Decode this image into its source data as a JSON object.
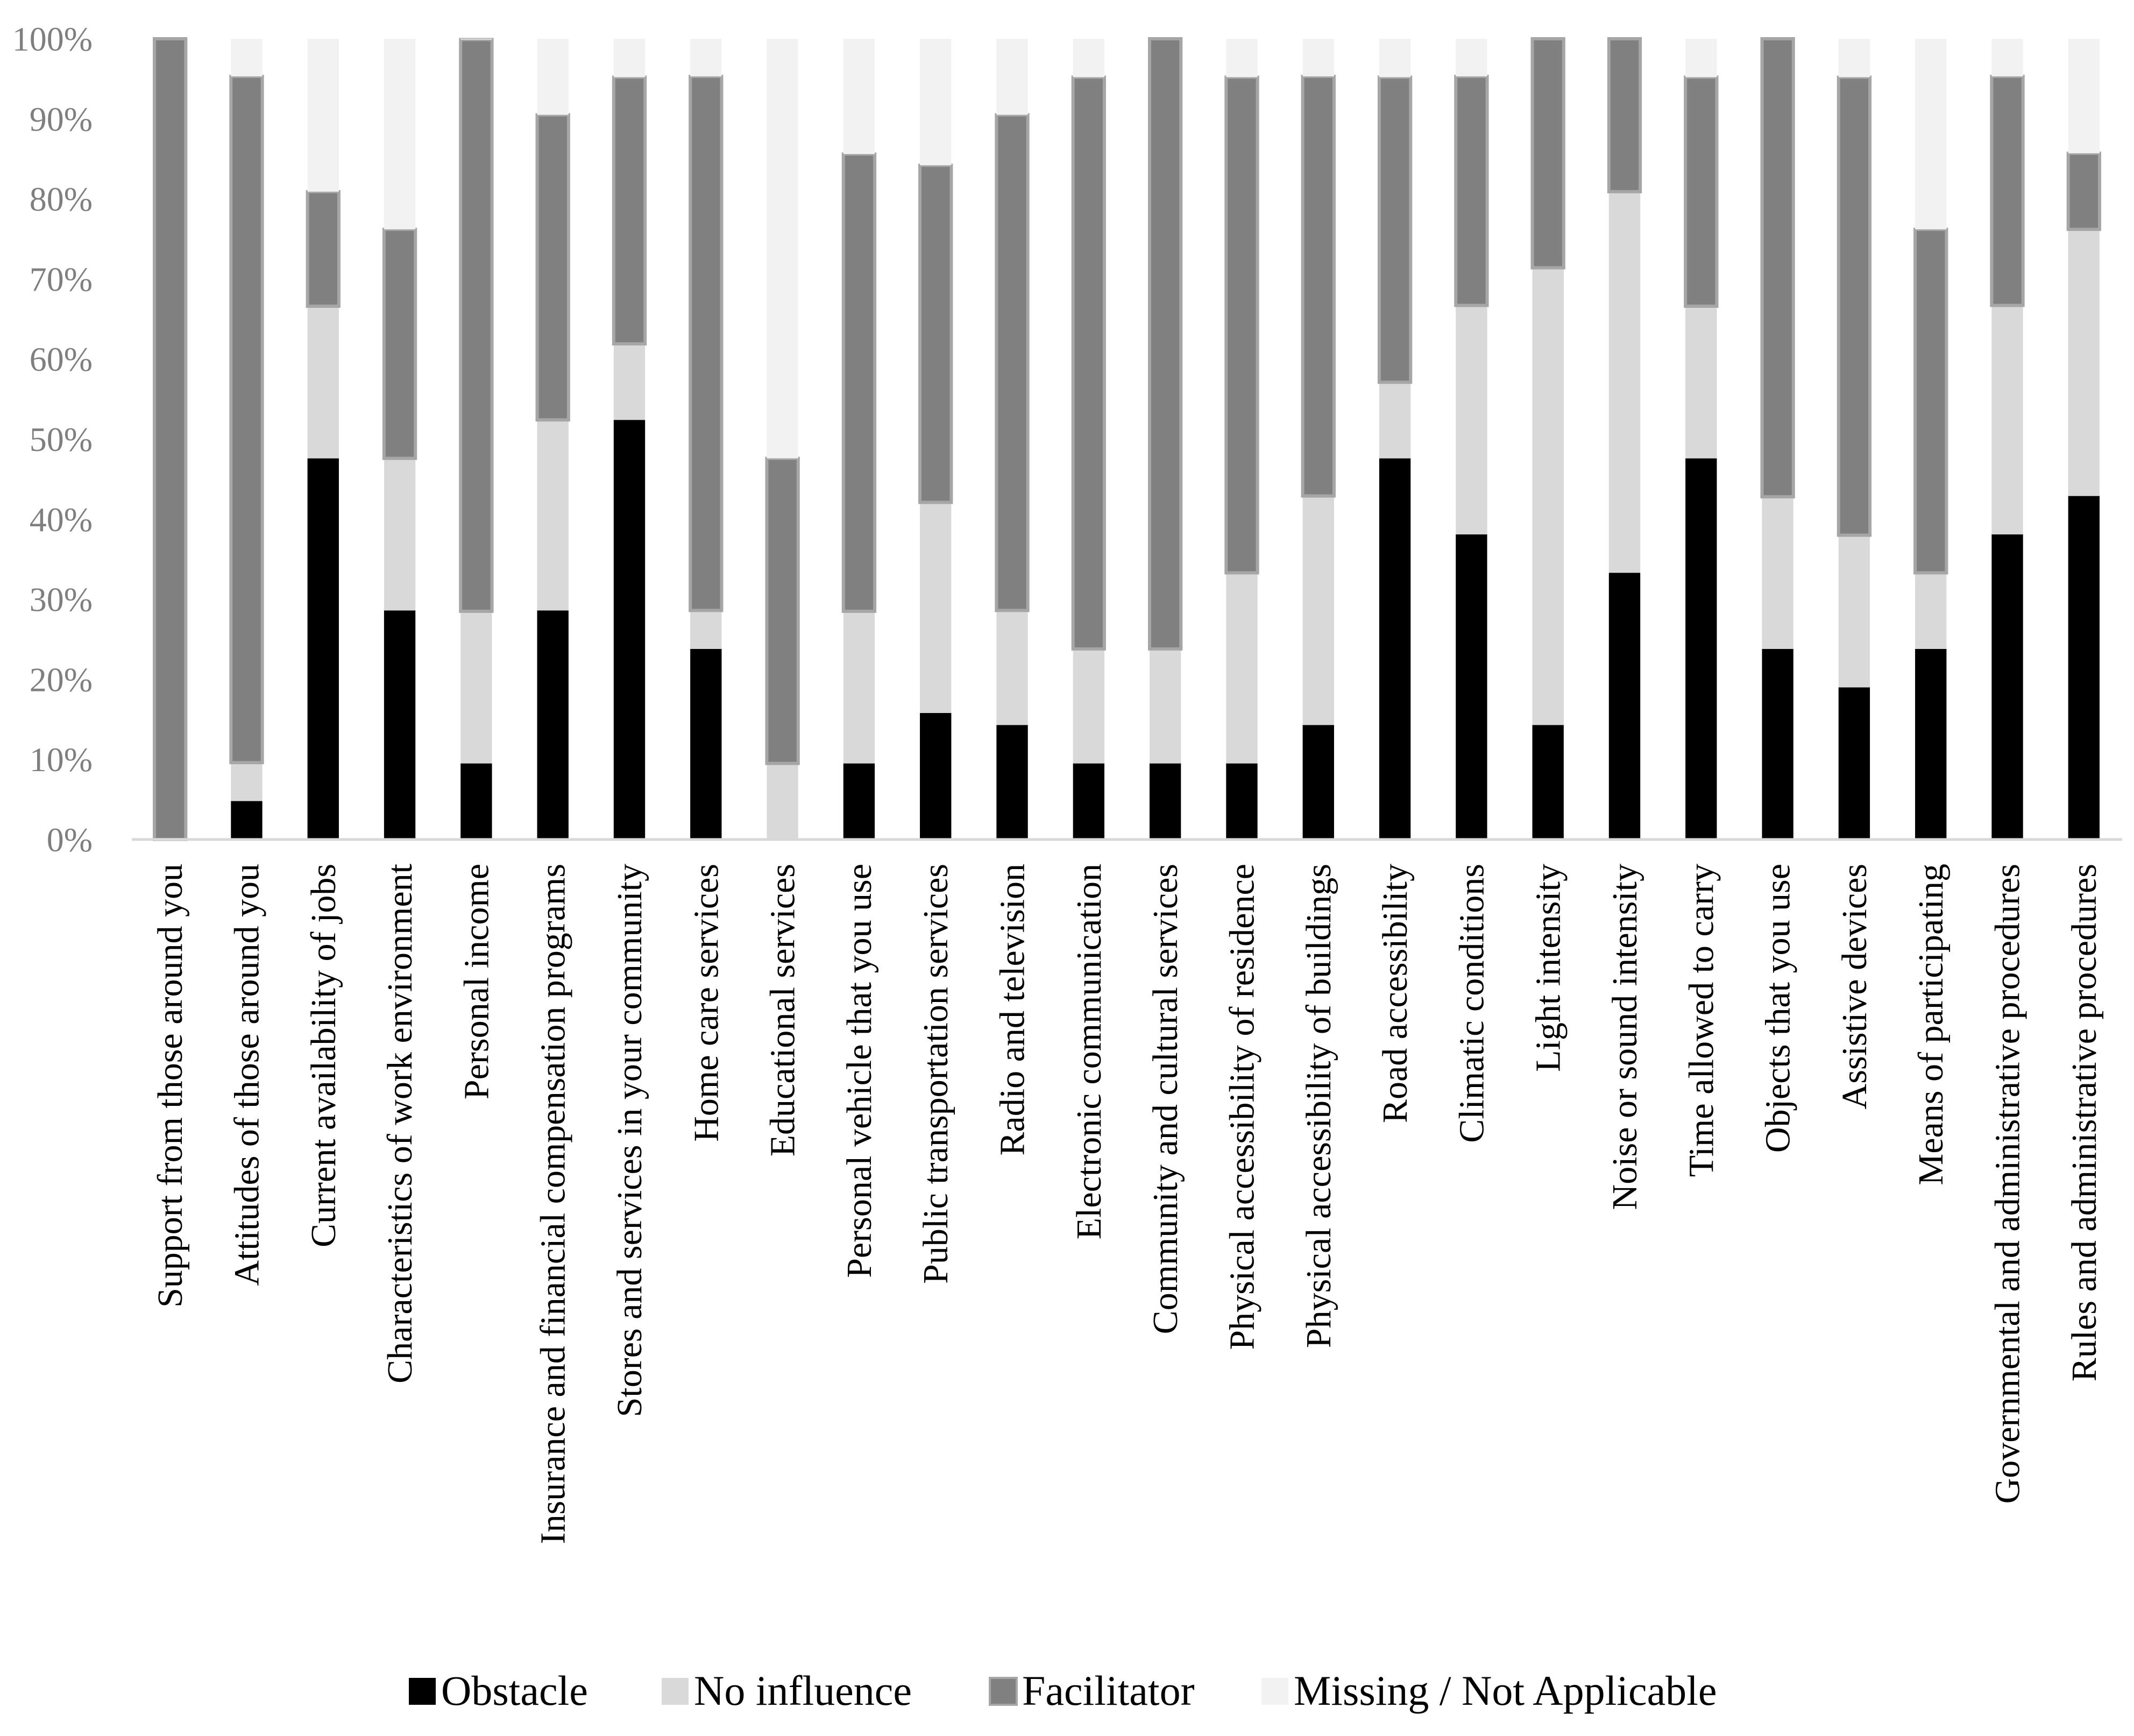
{
  "chart_data": {
    "type": "bar",
    "stacked": true,
    "title": "",
    "xlabel": "",
    "ylabel": "",
    "ylim": [
      0,
      100
    ],
    "yticks": [
      0,
      10,
      20,
      30,
      40,
      50,
      60,
      70,
      80,
      90,
      100
    ],
    "ytick_labels": [
      "0%",
      "10%",
      "20%",
      "30%",
      "40%",
      "50%",
      "60%",
      "70%",
      "80%",
      "90%",
      "100%"
    ],
    "grid": false,
    "legend_position": "bottom",
    "categories": [
      "Support from those around you",
      "Attitudes of those around you",
      "Current availability of jobs",
      "Characteristics of work environment",
      "Personal income",
      "Insurance and financial compensation programs",
      "Stores and services in your community",
      "Home care services",
      "Educational services",
      "Personal vehicle that you use",
      "Public transportation services",
      "Radio and television",
      "Electronic communication",
      "Community and cultural services",
      "Physical accessibility of residence",
      "Physical accessibility of buildings",
      "Road accessibility",
      "Climatic conditions",
      "Light intensity",
      "Noise or sound intensity",
      "Time allowed to carry",
      "Objects that you use",
      "Assistive devices",
      "Means of participating",
      "Governmental and administrative procedures",
      "Rules and administrative procedures"
    ],
    "series": [
      {
        "name": "Obstacle",
        "color": "#000000",
        "values": [
          0,
          4.8,
          47.6,
          28.6,
          9.5,
          28.6,
          52.4,
          23.8,
          0,
          9.5,
          15.8,
          14.3,
          9.5,
          9.5,
          9.5,
          14.3,
          47.6,
          38.1,
          14.3,
          33.3,
          47.6,
          23.8,
          19.0,
          23.8,
          38.1,
          42.9
        ]
      },
      {
        "name": "No influence",
        "color": "#d9d9d9",
        "values": [
          0,
          4.8,
          19.0,
          19.0,
          19.0,
          23.8,
          9.5,
          4.8,
          9.5,
          19.0,
          26.3,
          14.3,
          14.3,
          14.3,
          23.8,
          28.6,
          9.5,
          28.6,
          57.1,
          47.6,
          19.0,
          19.0,
          19.0,
          9.5,
          28.6,
          33.3
        ]
      },
      {
        "name": "Facilitator",
        "color": "#808080",
        "values": [
          100,
          85.7,
          14.3,
          28.6,
          71.4,
          38.1,
          33.3,
          66.7,
          38.1,
          57.1,
          42.1,
          61.9,
          71.4,
          76.2,
          61.9,
          52.4,
          38.1,
          28.6,
          28.6,
          19.1,
          28.6,
          57.2,
          57.2,
          42.9,
          28.6,
          9.5
        ]
      },
      {
        "name": "Missing / Not Applicable",
        "color": "#f2f2f2",
        "values": [
          0,
          4.7,
          19.1,
          23.8,
          0.1,
          9.5,
          4.8,
          4.7,
          52.4,
          14.4,
          15.8,
          9.5,
          4.8,
          0,
          4.8,
          4.7,
          4.8,
          4.7,
          0,
          0,
          4.8,
          0,
          4.8,
          23.8,
          4.7,
          14.3
        ]
      }
    ]
  }
}
